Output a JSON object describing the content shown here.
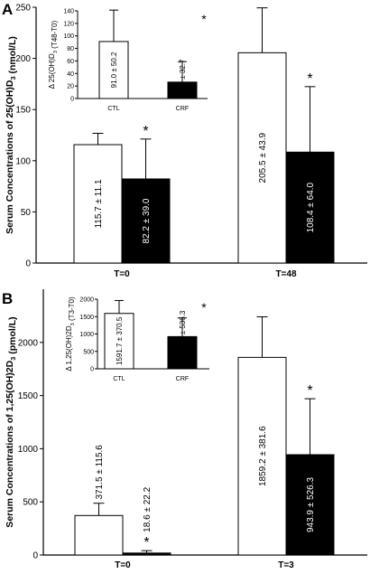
{
  "chart_data": [
    {
      "panel": "A",
      "type": "bar",
      "ylabel": "Serum Concentrations of 25(OH)D3 (nmol/L)",
      "ylim": [
        0,
        250
      ],
      "yticks": [
        0,
        50,
        100,
        150,
        200,
        250
      ],
      "categories": [
        "T=0",
        "T=48"
      ],
      "series": [
        {
          "fill": "#ffffff",
          "values": [
            115.7,
            205.5
          ],
          "errors": [
            11.1,
            43.9
          ],
          "labels": [
            "115.7 ± 11.1",
            "205.5 ± 43.9"
          ],
          "marks": [
            "",
            ""
          ]
        },
        {
          "fill": "#000000",
          "values": [
            82.2,
            108.4
          ],
          "errors": [
            39.0,
            64.0
          ],
          "labels": [
            "82.2 ± 39.0",
            "108.4 ± 64.0"
          ],
          "marks": [
            "*",
            "*"
          ]
        }
      ]
    },
    {
      "panel": "A-inset",
      "type": "bar",
      "ylabel": "Δ 25(OH)D3 (T48-T0)",
      "ylim": [
        0,
        140
      ],
      "yticks": [
        0,
        20,
        40,
        60,
        80,
        100,
        120,
        140
      ],
      "categories": [
        "CTL",
        "CRF"
      ],
      "values": [
        91.0,
        26.2
      ],
      "errors": [
        50.2,
        32.7
      ],
      "fills": [
        "#ffffff",
        "#000000"
      ],
      "labels": [
        "91.0 ± 50.2",
        "26.2 ± 32.7"
      ],
      "marks": [
        "",
        "*"
      ]
    },
    {
      "panel": "B",
      "type": "bar",
      "ylabel": "Serum Concentrations of 1,25(OH)2D3 (pmol/L)",
      "ylim": [
        0,
        2500
      ],
      "yticks": [
        0,
        500,
        1000,
        1500,
        2000
      ],
      "categories": [
        "T=0",
        "T=3"
      ],
      "series": [
        {
          "fill": "#ffffff",
          "values": [
            371.5,
            1859.2
          ],
          "errors": [
            115.6,
            381.6
          ],
          "labels": [
            "371.5 ± 115.6",
            "1859.2 ± 381.6"
          ],
          "marks": [
            "",
            ""
          ]
        },
        {
          "fill": "#000000",
          "values": [
            18.6,
            943.9
          ],
          "errors": [
            22.2,
            526.3
          ],
          "labels": [
            "18.6 ± 22.2",
            "943.9 ± 526.3"
          ],
          "marks": [
            "*",
            "*"
          ]
        }
      ]
    },
    {
      "panel": "B-inset",
      "type": "bar",
      "ylabel": "Δ 1,25(OH)2D3 (T3-T0)",
      "ylim": [
        0,
        2000
      ],
      "yticks": [
        0,
        500,
        1000,
        1500,
        2000
      ],
      "categories": [
        "CTL",
        "CRF"
      ],
      "values": [
        1591.7,
        925.2
      ],
      "errors": [
        370.5,
        536.3
      ],
      "fills": [
        "#ffffff",
        "#000000"
      ],
      "labels": [
        "1591.7 ± 370.5",
        "925.2 ± 536.3"
      ],
      "marks": [
        "",
        "*"
      ]
    }
  ]
}
